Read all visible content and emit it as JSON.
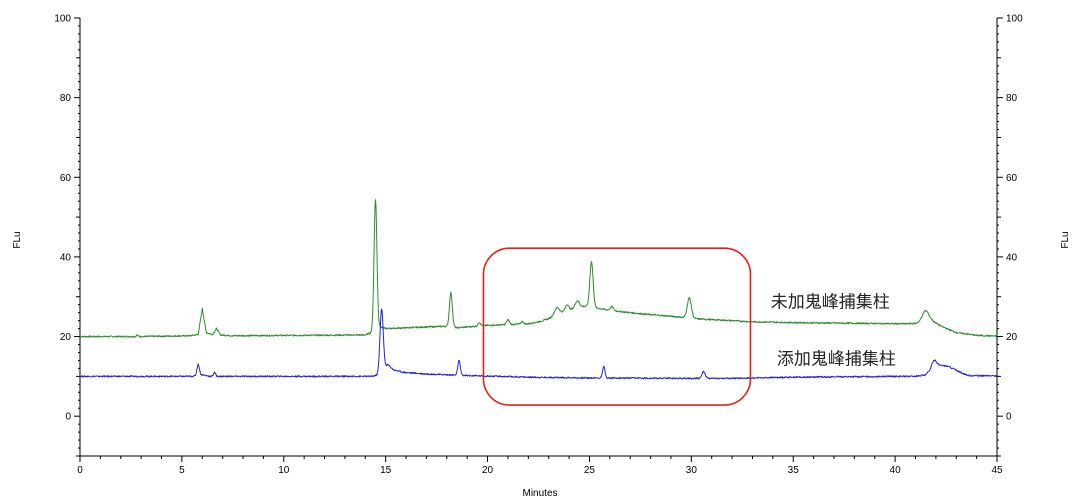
{
  "chart_data": {
    "type": "line",
    "xlabel": "Minutes",
    "ylabel_left": "FLu",
    "ylabel_right": "FLu",
    "xlim": [
      0,
      45
    ],
    "ylim": [
      -10,
      100
    ],
    "xticks_major": [
      0,
      5,
      10,
      15,
      20,
      25,
      30,
      35,
      40,
      45
    ],
    "yticks_major": [
      0,
      20,
      40,
      60,
      80,
      100
    ],
    "grid": false,
    "colors": {
      "axis": "#000000",
      "highlight_box": "#e8201a"
    },
    "series": [
      {
        "label": "未加鬼峰捕集柱",
        "color": "#2e8b2e",
        "baseline": [
          [
            0,
            20.0
          ],
          [
            2.7,
            20.0
          ],
          [
            2.8,
            20.4
          ],
          [
            2.9,
            20.0
          ],
          [
            5.4,
            20.2
          ],
          [
            5.8,
            20.5
          ],
          [
            6.0,
            27.0
          ],
          [
            6.2,
            21.0
          ],
          [
            6.5,
            20.5
          ],
          [
            6.7,
            22.0
          ],
          [
            6.9,
            20.4
          ],
          [
            7.5,
            20.2
          ],
          [
            14.0,
            20.4
          ],
          [
            14.3,
            21.0
          ],
          [
            14.7,
            22.5
          ],
          [
            15.0,
            22.0
          ],
          [
            18.0,
            22.6
          ],
          [
            18.5,
            22.2
          ],
          [
            19.2,
            22.5
          ],
          [
            20.0,
            22.8
          ],
          [
            21.0,
            23.0
          ],
          [
            22.0,
            23.2
          ],
          [
            22.6,
            23.8
          ],
          [
            23.0,
            24.5
          ],
          [
            23.5,
            25.8
          ],
          [
            24.0,
            26.6
          ],
          [
            24.5,
            27.5
          ],
          [
            24.9,
            27.6
          ],
          [
            25.3,
            27.2
          ],
          [
            26.0,
            26.6
          ],
          [
            27.0,
            26.0
          ],
          [
            28.0,
            25.5
          ],
          [
            29.0,
            25.1
          ],
          [
            29.6,
            24.8
          ],
          [
            30.4,
            24.4
          ],
          [
            32.0,
            24.0
          ],
          [
            33.0,
            23.7
          ],
          [
            35.0,
            23.5
          ],
          [
            40.5,
            23.2
          ],
          [
            41.0,
            23.3
          ],
          [
            41.3,
            23.8
          ],
          [
            41.8,
            24.0
          ],
          [
            42.3,
            22.5
          ],
          [
            43.0,
            21.0
          ],
          [
            44.0,
            20.3
          ],
          [
            45.0,
            20.1
          ]
        ],
        "peaks": [
          [
            14.5,
            54.5,
            0.07
          ],
          [
            18.2,
            31.0,
            0.07
          ],
          [
            19.6,
            23.6,
            0.06
          ],
          [
            21.0,
            24.2,
            0.07
          ],
          [
            21.7,
            23.8,
            0.06
          ],
          [
            23.4,
            27.2,
            0.12
          ],
          [
            23.9,
            28.0,
            0.09
          ],
          [
            24.4,
            29.0,
            0.1
          ],
          [
            25.1,
            38.8,
            0.08
          ],
          [
            26.1,
            27.5,
            0.08
          ],
          [
            29.9,
            29.7,
            0.1
          ],
          [
            41.5,
            26.5,
            0.15
          ]
        ]
      },
      {
        "label": "添加鬼峰捕集柱",
        "color": "#2323d8",
        "baseline": [
          [
            0,
            10.0
          ],
          [
            5.5,
            10.0
          ],
          [
            6.0,
            10.4
          ],
          [
            6.4,
            10.0
          ],
          [
            7.0,
            10.0
          ],
          [
            14.3,
            10.0
          ],
          [
            14.7,
            10.4
          ],
          [
            15.1,
            13.0
          ],
          [
            15.4,
            11.6
          ],
          [
            15.9,
            11.0
          ],
          [
            17.0,
            10.6
          ],
          [
            18.0,
            10.4
          ],
          [
            19.0,
            10.2
          ],
          [
            22.0,
            9.8
          ],
          [
            25.0,
            9.6
          ],
          [
            30.0,
            9.5
          ],
          [
            32.0,
            9.5
          ],
          [
            35.0,
            9.8
          ],
          [
            40.0,
            10.0
          ],
          [
            41.0,
            10.0
          ],
          [
            41.5,
            10.4
          ],
          [
            42.0,
            13.0
          ],
          [
            42.6,
            12.5
          ],
          [
            43.3,
            10.8
          ],
          [
            43.6,
            10.2
          ],
          [
            45.0,
            10.1
          ]
        ],
        "peaks": [
          [
            5.8,
            13.0,
            0.06
          ],
          [
            6.6,
            11.0,
            0.05
          ],
          [
            14.8,
            27.0,
            0.08
          ],
          [
            18.6,
            14.0,
            0.06
          ],
          [
            25.7,
            12.5,
            0.06
          ],
          [
            30.6,
            11.2,
            0.08
          ],
          [
            41.9,
            14.0,
            0.1
          ]
        ]
      }
    ],
    "annotations": [
      {
        "text": "未加鬼峰捕集柱",
        "x": 33.9,
        "y": 27.3
      },
      {
        "text": "添加鬼峰捕集柱",
        "x": 34.2,
        "y": 13.0
      }
    ],
    "highlight_box": {
      "x0": 19.8,
      "x1": 32.9,
      "y0": 2.8,
      "y1": 42.2
    }
  }
}
